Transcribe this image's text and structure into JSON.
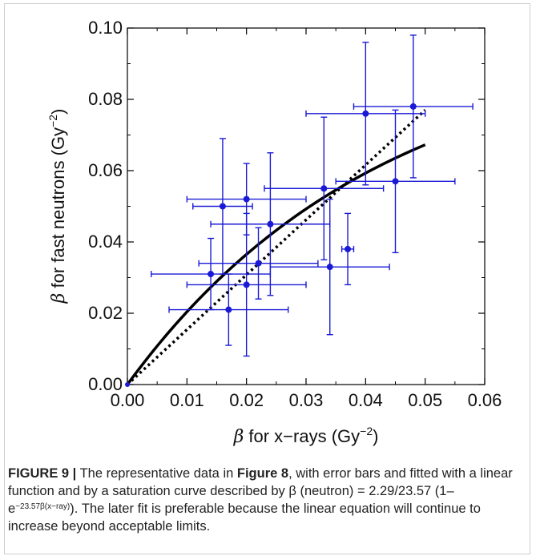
{
  "chart_data": {
    "type": "scatter",
    "xlabel": {
      "symbol": "β",
      "text": " for x−rays (Gy",
      "sup": "−2",
      "close": ")"
    },
    "ylabel": {
      "symbol": "β",
      "text": " for fast neutrons (Gy",
      "sup": "−2",
      "close": ")"
    },
    "xlim": [
      0,
      0.06
    ],
    "ylim": [
      0,
      0.1
    ],
    "xticks": [
      "0.00",
      "0.01",
      "0.02",
      "0.03",
      "0.04",
      "0.05",
      "0.06"
    ],
    "yticks": [
      "0.00",
      "0.02",
      "0.04",
      "0.06",
      "0.08",
      "0.10"
    ],
    "grid": false,
    "colors": {
      "points": "#1a1ad6",
      "fit": "#000000"
    },
    "points": [
      {
        "x": 0.014,
        "y": 0.031,
        "xerr": 0.01,
        "yerr": 0.01
      },
      {
        "x": 0.016,
        "y": 0.05,
        "xerr": 0.005,
        "yerr": 0.019
      },
      {
        "x": 0.017,
        "y": 0.021,
        "xerr": 0.01,
        "yerr": 0.01
      },
      {
        "x": 0.02,
        "y": 0.052,
        "xerr": 0.01,
        "yerr": 0.01
      },
      {
        "x": 0.02,
        "y": 0.028,
        "xerr": 0.01,
        "yerr": 0.02
      },
      {
        "x": 0.022,
        "y": 0.034,
        "xerr": 0.01,
        "yerr": 0.01
      },
      {
        "x": 0.024,
        "y": 0.045,
        "xerr": 0.01,
        "yerr": 0.02
      },
      {
        "x": 0.033,
        "y": 0.055,
        "xerr": 0.01,
        "yerr": 0.02
      },
      {
        "x": 0.034,
        "y": 0.033,
        "xerr": 0.01,
        "yerr": 0.019
      },
      {
        "x": 0.037,
        "y": 0.038,
        "xerr": 0.001,
        "yerr": 0.01
      },
      {
        "x": 0.04,
        "y": 0.076,
        "xerr": 0.01,
        "yerr": 0.02
      },
      {
        "x": 0.045,
        "y": 0.057,
        "xerr": 0.01,
        "yerr": 0.02
      },
      {
        "x": 0.048,
        "y": 0.078,
        "xerr": 0.01,
        "yerr": 0.02
      }
    ],
    "fits": [
      {
        "style": "dotted",
        "kind": "linear",
        "slope": 1.54,
        "x_range": [
          0,
          0.05
        ]
      },
      {
        "style": "solid",
        "kind": "saturation",
        "a": 2.29,
        "b": 23.57,
        "x_range": [
          0,
          0.05
        ]
      }
    ]
  },
  "caption": {
    "label": "FIGURE 9 |",
    "part1": " The representative data in ",
    "ref": "Figure 8",
    "part2": ", with error bars and fitted with a linear function and by a saturation curve described by β (neutron) = 2.29/23.57 (1–e",
    "exponent": "−23.57β(x−ray)",
    "part3": "). The later fit is preferable because the linear equation will continue to increase beyond acceptable limits."
  }
}
